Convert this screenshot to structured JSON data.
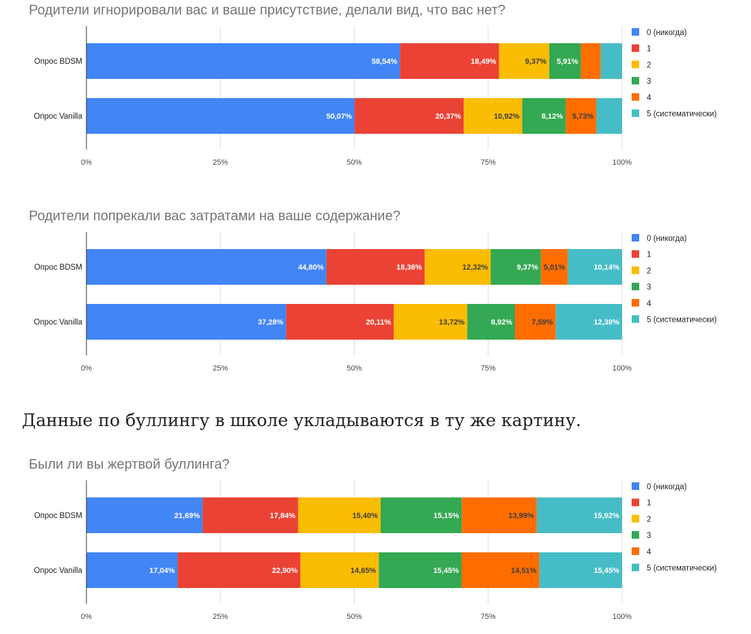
{
  "paragraph": "Данные по буллингу в школе укладываются в ту же картину.",
  "chart_data": [
    {
      "type": "bar",
      "orientation": "horizontal",
      "stacked": "percent",
      "title": "Родители игнорировали вас и ваше присутствие, делали вид, что вас нет?",
      "categories": [
        "Опрос BDSM",
        "Опрос Vanilla"
      ],
      "series": [
        {
          "name": "0 (никогда)",
          "color": "#4285f4",
          "values": [
            58.54,
            50.07
          ],
          "labels": [
            "58,54%",
            "50,07%"
          ]
        },
        {
          "name": "1",
          "color": "#ea4335",
          "values": [
            18.49,
            20.37
          ],
          "labels": [
            "18,49%",
            "20,37%"
          ]
        },
        {
          "name": "2",
          "color": "#fbbc04",
          "values": [
            9.37,
            10.92
          ],
          "labels": [
            "9,37%",
            "10,92%"
          ]
        },
        {
          "name": "3",
          "color": "#34a853",
          "values": [
            5.91,
            8.12
          ],
          "labels": [
            "5,91%",
            "8,12%"
          ]
        },
        {
          "name": "4",
          "color": "#ff6d01",
          "values": [
            3.7,
            5.73
          ],
          "labels": [
            "",
            "5,73%"
          ]
        },
        {
          "name": "5 (систематически)",
          "color": "#46bdc6",
          "values": [
            3.99,
            4.79
          ],
          "labels": [
            "",
            ""
          ]
        }
      ],
      "xticks": [
        "0%",
        "25%",
        "50%",
        "75%",
        "100%"
      ],
      "xlim": [
        0,
        100
      ],
      "legend": "right",
      "grid": true
    },
    {
      "type": "bar",
      "orientation": "horizontal",
      "stacked": "percent",
      "title": "Родители попрекали вас затратами на ваше содержание?",
      "categories": [
        "Опрос BDSM",
        "Опрос Vanilla"
      ],
      "series": [
        {
          "name": "0 (никогда)",
          "color": "#4285f4",
          "values": [
            44.8,
            37.28
          ],
          "labels": [
            "44,80%",
            "37,28%"
          ]
        },
        {
          "name": "1",
          "color": "#ea4335",
          "values": [
            18.36,
            20.11
          ],
          "labels": [
            "18,36%",
            "20,11%"
          ]
        },
        {
          "name": "2",
          "color": "#fbbc04",
          "values": [
            12.32,
            13.72
          ],
          "labels": [
            "12,32%",
            "13,72%"
          ]
        },
        {
          "name": "3",
          "color": "#34a853",
          "values": [
            9.37,
            8.92
          ],
          "labels": [
            "9,37%",
            "8,92%"
          ]
        },
        {
          "name": "4",
          "color": "#ff6d01",
          "values": [
            5.01,
            7.59
          ],
          "labels": [
            "5,01%",
            "7,59%"
          ]
        },
        {
          "name": "5 (систематически)",
          "color": "#46bdc6",
          "values": [
            10.14,
            12.38
          ],
          "labels": [
            "10,14%",
            "12,38%"
          ]
        }
      ],
      "xticks": [
        "0%",
        "25%",
        "50%",
        "75%",
        "100%"
      ],
      "xlim": [
        0,
        100
      ],
      "legend": "right",
      "grid": true
    },
    {
      "type": "bar",
      "orientation": "horizontal",
      "stacked": "percent",
      "title": "Были ли вы жертвой буллинга?",
      "categories": [
        "Опрос BDSM",
        "Опрос Vanilla"
      ],
      "series": [
        {
          "name": "0 (никогда)",
          "color": "#4285f4",
          "values": [
            21.69,
            17.04
          ],
          "labels": [
            "21,69%",
            "17,04%"
          ]
        },
        {
          "name": "1",
          "color": "#ea4335",
          "values": [
            17.84,
            22.9
          ],
          "labels": [
            "17,84%",
            "22,90%"
          ]
        },
        {
          "name": "2",
          "color": "#fbbc04",
          "values": [
            15.4,
            14.65
          ],
          "labels": [
            "15,40%",
            "14,65%"
          ]
        },
        {
          "name": "3",
          "color": "#34a853",
          "values": [
            15.15,
            15.45
          ],
          "labels": [
            "15,15%",
            "15,45%"
          ]
        },
        {
          "name": "4",
          "color": "#ff6d01",
          "values": [
            13.99,
            14.51
          ],
          "labels": [
            "13,99%",
            "14,51%"
          ]
        },
        {
          "name": "5 (систематически)",
          "color": "#46bdc6",
          "values": [
            15.92,
            15.45
          ],
          "labels": [
            "15,92%",
            "15,45%"
          ]
        }
      ],
      "xticks": [
        "0%",
        "25%",
        "50%",
        "75%",
        "100%"
      ],
      "xlim": [
        0,
        100
      ],
      "legend": "right",
      "grid": true
    }
  ]
}
